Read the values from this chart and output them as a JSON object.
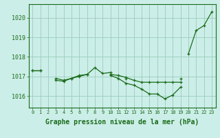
{
  "background_color": "#cceee8",
  "grid_color": "#99ccbb",
  "line_color": "#1a6b1a",
  "marker_color": "#1a6b1a",
  "xlabel": "Graphe pression niveau de la mer (hPa)",
  "xlabel_fontsize": 7,
  "yticks": [
    1016,
    1017,
    1018,
    1019,
    1020
  ],
  "ylim": [
    1015.4,
    1020.7
  ],
  "xlim": [
    -0.5,
    23.5
  ],
  "series": [
    [
      1017.3,
      1017.3,
      null,
      1016.9,
      1016.8,
      1016.9,
      1017.0,
      1017.1,
      1017.45,
      1017.15,
      1017.2,
      null,
      1016.9,
      null,
      null,
      null,
      null,
      null,
      null,
      1016.9,
      null,
      null,
      null,
      null
    ],
    [
      null,
      null,
      null,
      1016.8,
      1016.75,
      1016.9,
      1017.05,
      1017.1,
      null,
      null,
      1017.05,
      1016.9,
      1016.65,
      1016.55,
      1016.35,
      1016.1,
      1016.1,
      1015.85,
      1016.05,
      1016.45,
      null,
      null,
      null,
      null
    ],
    [
      null,
      null,
      null,
      null,
      null,
      null,
      null,
      null,
      null,
      null,
      1017.1,
      1017.05,
      1016.95,
      1016.8,
      1016.7,
      1016.7,
      1016.7,
      1016.7,
      1016.7,
      1016.7,
      null,
      null,
      null,
      null
    ],
    [
      1017.3,
      1017.3,
      null,
      null,
      null,
      null,
      null,
      null,
      null,
      null,
      null,
      null,
      null,
      null,
      null,
      null,
      null,
      null,
      null,
      null,
      1018.15,
      1019.35,
      1019.6,
      1020.3
    ]
  ]
}
